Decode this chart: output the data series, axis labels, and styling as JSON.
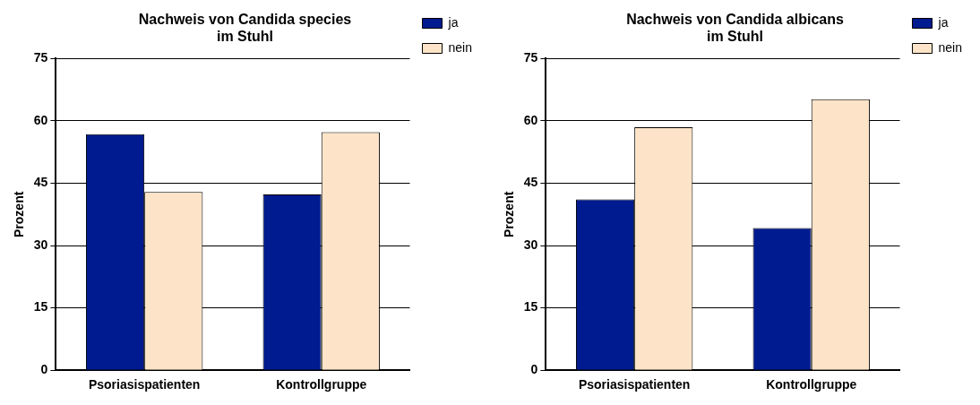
{
  "chart_data": [
    {
      "type": "bar",
      "title": "Nachweis von Candida species\nim Stuhl",
      "ylabel": "Prozent",
      "categories": [
        "Psoriasispatienten",
        "Kontrollgruppe"
      ],
      "series": [
        {
          "name": "ja",
          "color": "#001a8f",
          "values": [
            56.8,
            42.3
          ]
        },
        {
          "name": "nein",
          "color": "#fde4c8",
          "values": [
            42.9,
            57.3
          ]
        }
      ],
      "ylim": [
        0,
        75
      ],
      "yticks": [
        0,
        15,
        30,
        45,
        60,
        75
      ],
      "grid": "y",
      "legend": "top right"
    },
    {
      "type": "bar",
      "title": "Nachweis von Candida albicans\nim Stuhl",
      "ylabel": "Prozent",
      "categories": [
        "Psoriasispatienten",
        "Kontrollgruppe"
      ],
      "series": [
        {
          "name": "ja",
          "color": "#001a8f",
          "values": [
            41.1,
            34.2
          ]
        },
        {
          "name": "nein",
          "color": "#fde4c8",
          "values": [
            58.5,
            65.2
          ]
        }
      ],
      "ylim": [
        0,
        75
      ],
      "yticks": [
        0,
        15,
        30,
        45,
        60,
        75
      ],
      "grid": "y",
      "legend": "top right"
    }
  ]
}
